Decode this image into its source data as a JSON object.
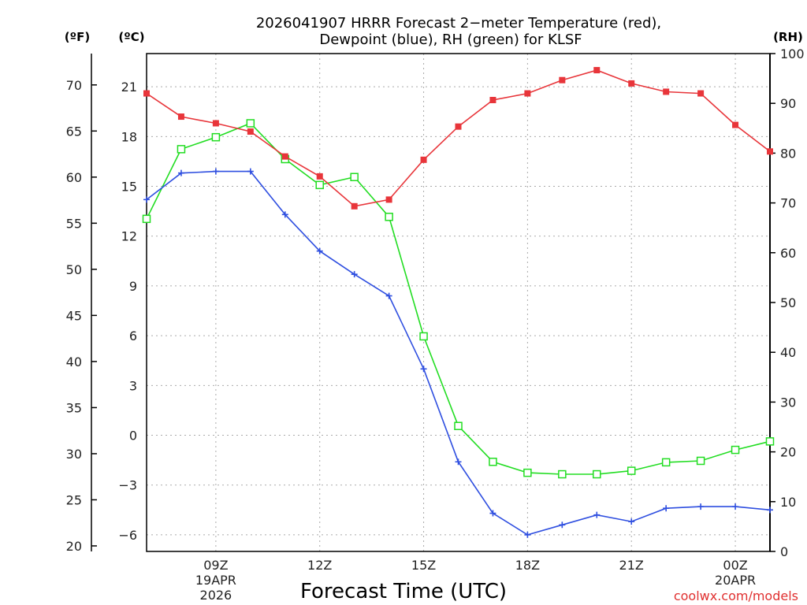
{
  "chart_data": {
    "type": "line",
    "title_line1": "2026041907 HRRR Forecast 2−meter Temperature (red),",
    "title_line2": "Dewpoint (blue), RH (green) for KLSF",
    "xlabel": "Forecast Time (UTC)",
    "credit": "coolwx.com/models",
    "unit_f": "(ºF)",
    "unit_c": "(ºC)",
    "unit_rh": "(RH)",
    "x_hours": [
      7,
      8,
      9,
      10,
      11,
      12,
      13,
      14,
      15,
      16,
      17,
      18,
      19,
      20,
      21,
      22,
      23,
      24,
      25
    ],
    "x_range": [
      7,
      25
    ],
    "x_ticks": [
      {
        "hour": 9,
        "label": "09Z",
        "sub1": "19APR",
        "sub2": "2026"
      },
      {
        "hour": 12,
        "label": "12Z"
      },
      {
        "hour": 15,
        "label": "15Z"
      },
      {
        "hour": 18,
        "label": "18Z"
      },
      {
        "hour": 21,
        "label": "21Z"
      },
      {
        "hour": 24,
        "label": "00Z",
        "sub1": "20APR"
      }
    ],
    "celsius_axis": {
      "range": [
        -7.0,
        23.0
      ],
      "ticks": [
        21,
        18,
        15,
        12,
        9,
        6,
        3,
        0,
        -3,
        -6
      ],
      "tick_labels": [
        "21",
        "18",
        "15",
        "12",
        "9",
        "6",
        "3",
        "0",
        "−3",
        "−6"
      ]
    },
    "fahrenheit_axis": {
      "ticks": [
        70,
        65,
        60,
        55,
        50,
        45,
        40,
        35,
        30,
        25,
        20
      ],
      "tick_labels": [
        "70",
        "65",
        "60",
        "55",
        "50",
        "45",
        "40",
        "35",
        "30",
        "25",
        "20"
      ]
    },
    "rh_axis": {
      "range": [
        0,
        100
      ],
      "ticks": [
        100,
        90,
        80,
        70,
        60,
        50,
        40,
        30,
        20,
        10,
        0
      ],
      "tick_labels": [
        "100",
        "90",
        "80",
        "70",
        "60",
        "50",
        "40",
        "30",
        "20",
        "10",
        "0"
      ]
    },
    "series": [
      {
        "name": "Temperature",
        "axis": "celsius",
        "color": "#e8353a",
        "marker": "square-filled",
        "values": [
          20.6,
          19.2,
          18.8,
          18.3,
          16.8,
          15.6,
          13.8,
          14.2,
          16.6,
          18.6,
          20.2,
          20.6,
          21.4,
          22.0,
          21.2,
          20.7,
          20.6,
          18.7,
          17.1
        ]
      },
      {
        "name": "Dewpoint",
        "axis": "celsius",
        "color": "#2f4fe0",
        "marker": "plus",
        "values": [
          14.2,
          15.8,
          15.9,
          15.9,
          13.3,
          11.1,
          9.7,
          8.4,
          4.0,
          -1.6,
          -4.7,
          -6.0,
          -5.4,
          -4.8,
          -5.2,
          -4.4,
          -4.3,
          -4.3,
          -4.5
        ]
      },
      {
        "name": "RH",
        "axis": "rh",
        "color": "#22dd22",
        "marker": "square-open",
        "values": [
          66.8,
          80.8,
          83.2,
          86.0,
          78.8,
          73.6,
          75.2,
          67.2,
          43.2,
          25.2,
          18.0,
          15.8,
          15.5,
          15.5,
          16.2,
          17.9,
          18.2,
          20.4,
          22.1
        ]
      }
    ]
  }
}
